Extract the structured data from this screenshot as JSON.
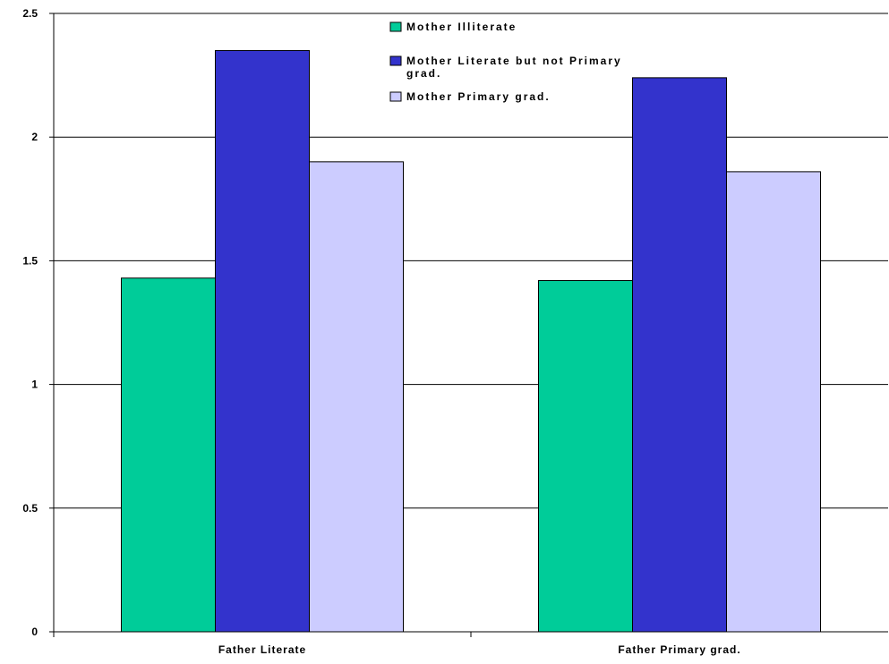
{
  "chart_data": {
    "type": "bar",
    "title": "",
    "xlabel": "",
    "ylabel": "",
    "categories": [
      "Father Literate",
      "Father Primary grad."
    ],
    "series": [
      {
        "name": "Mother Illiterate",
        "values": [
          1.43,
          1.42
        ],
        "color": "#00cc99"
      },
      {
        "name": "Mother Literate but not Primary grad.",
        "values": [
          2.35,
          2.24
        ],
        "color": "#3333cc"
      },
      {
        "name": "Mother Primary grad.",
        "values": [
          1.9,
          1.86
        ],
        "color": "#ccccff"
      }
    ],
    "ylim": [
      0,
      2.5
    ],
    "yticks": [
      "0",
      "0.5",
      "1",
      "1.5",
      "2",
      "2.5"
    ],
    "grid": true,
    "legend_position": "top-center"
  }
}
